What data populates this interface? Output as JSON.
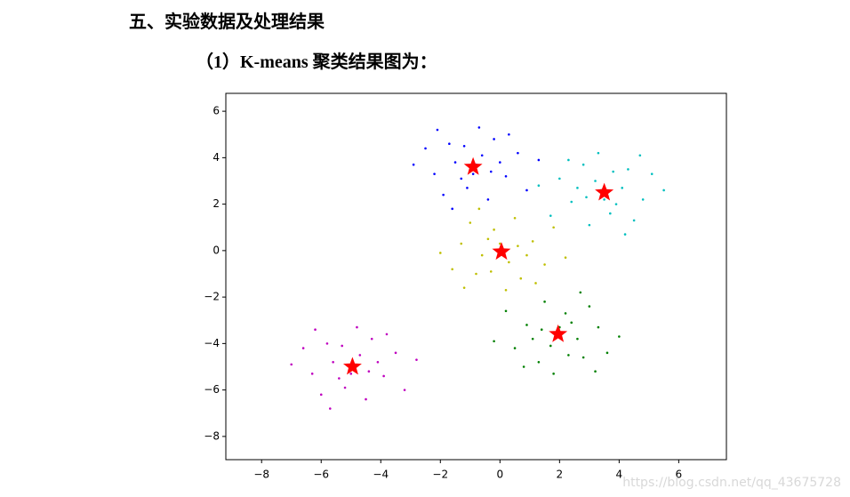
{
  "heading": "五、实验数据及处理结果",
  "subheading": "（1）K-means 聚类结果图为：",
  "watermark": "https://blog.csdn.net/qq_43675728",
  "chart_data": {
    "type": "scatter",
    "xlim": [
      -9.2,
      7.6
    ],
    "ylim": [
      -9.0,
      6.77
    ],
    "xticks": [
      {
        "value": -8,
        "label": "−8"
      },
      {
        "value": -6,
        "label": "−6"
      },
      {
        "value": -4,
        "label": "−4"
      },
      {
        "value": -2,
        "label": "−2"
      },
      0,
      2,
      4,
      6
    ],
    "yticks": [
      {
        "value": -8,
        "label": "−8"
      },
      {
        "value": -6,
        "label": "−6"
      },
      {
        "value": -4,
        "label": "−4"
      },
      {
        "value": -2,
        "label": "−2"
      },
      0,
      2,
      4,
      6
    ],
    "series": [
      {
        "color": "#0000ff",
        "marker": "dot",
        "x": [
          -0.6,
          -1.5,
          0.2,
          -1.1,
          -0.2,
          -2.2,
          -0.8,
          0.6,
          -1.7,
          -0.4,
          -2.5,
          0,
          -1.3,
          -0.7,
          -1.9,
          0.9,
          -1.2,
          -0.3,
          -2.9,
          0.3,
          -1.6,
          -0.9,
          1.3,
          -2.1
        ],
        "values": [
          4.1,
          3.8,
          3.2,
          2.7,
          4.8,
          3.3,
          3.7,
          4.2,
          4.6,
          2.2,
          4.4,
          3.8,
          3.1,
          5.3,
          2.4,
          2.6,
          4.5,
          3.4,
          3.7,
          5.0,
          1.8,
          3.3,
          3.9,
          5.2
        ]
      },
      {
        "color": "#00bfbf",
        "marker": "dot",
        "x": [
          3.2,
          4.1,
          2.4,
          3.7,
          2.8,
          4.8,
          3.4,
          2.0,
          4.3,
          3.0,
          5.1,
          2.6,
          3.9,
          3.3,
          4.5,
          1.7,
          3.8,
          2.9,
          5.5,
          2.3,
          4.2,
          3.5,
          1.3,
          4.7
        ],
        "values": [
          3.0,
          2.7,
          2.1,
          1.6,
          3.7,
          2.2,
          2.6,
          3.1,
          3.5,
          1.1,
          3.3,
          2.7,
          2.0,
          4.2,
          1.3,
          1.5,
          3.4,
          2.3,
          2.6,
          3.9,
          0.7,
          2.2,
          2.8,
          4.1
        ]
      },
      {
        "color": "#bfbf00",
        "marker": "dot",
        "x": [
          0.3,
          -0.6,
          1.1,
          -0.2,
          0.7,
          -1.3,
          0.1,
          1.5,
          -0.8,
          0.5,
          -1.6,
          0.9,
          -0.4,
          0.2,
          -1.0,
          1.8,
          -0.3,
          0.6,
          -2.0,
          1.2,
          -0.7,
          0.0,
          2.2,
          -1.2
        ],
        "values": [
          -0.5,
          -0.2,
          0.4,
          0.9,
          -1.2,
          0.3,
          -0.1,
          -0.6,
          -1.0,
          1.4,
          -0.8,
          -0.2,
          0.5,
          -1.7,
          1.2,
          1.0,
          -0.9,
          0.2,
          -0.1,
          -1.4,
          1.8,
          0.3,
          -0.3,
          -1.6
        ]
      },
      {
        "color": "#008000",
        "marker": "dot",
        "x": [
          1.7,
          2.6,
          0.9,
          2.2,
          1.3,
          3.3,
          1.9,
          0.5,
          2.8,
          1.5,
          3.6,
          1.1,
          2.4,
          1.8,
          3.0,
          0.2,
          2.3,
          1.4,
          4.0,
          0.8,
          2.7,
          2.0,
          -0.2,
          3.2
        ],
        "values": [
          -4.1,
          -3.8,
          -3.2,
          -2.7,
          -4.8,
          -3.3,
          -3.7,
          -4.2,
          -4.6,
          -2.2,
          -4.4,
          -3.8,
          -3.1,
          -5.3,
          -2.4,
          -2.6,
          -4.5,
          -3.4,
          -3.7,
          -5.0,
          -1.8,
          -3.3,
          -3.9,
          -5.2
        ]
      },
      {
        "color": "#bf00bf",
        "marker": "dot",
        "x": [
          -4.7,
          -5.6,
          -3.9,
          -5.2,
          -4.3,
          -6.3,
          -4.9,
          -3.5,
          -5.8,
          -4.5,
          -6.6,
          -4.1,
          -5.4,
          -4.8,
          -6.0,
          -3.2,
          -5.3,
          -4.4,
          -7.0,
          -3.8,
          -5.7,
          -5.0,
          -2.8,
          -6.2
        ],
        "values": [
          -4.5,
          -4.8,
          -5.4,
          -5.9,
          -3.8,
          -5.3,
          -4.9,
          -4.4,
          -4.0,
          -6.4,
          -4.2,
          -4.8,
          -5.5,
          -3.3,
          -6.2,
          -6.0,
          -4.1,
          -5.2,
          -4.9,
          -3.6,
          -6.8,
          -5.3,
          -4.7,
          -3.4
        ]
      },
      {
        "color": "#ff0000",
        "marker": "star",
        "x": [
          -0.9,
          3.5,
          0.05,
          1.95,
          -4.95
        ],
        "values": [
          3.6,
          2.5,
          -0.05,
          -3.6,
          -5.0
        ]
      }
    ]
  }
}
